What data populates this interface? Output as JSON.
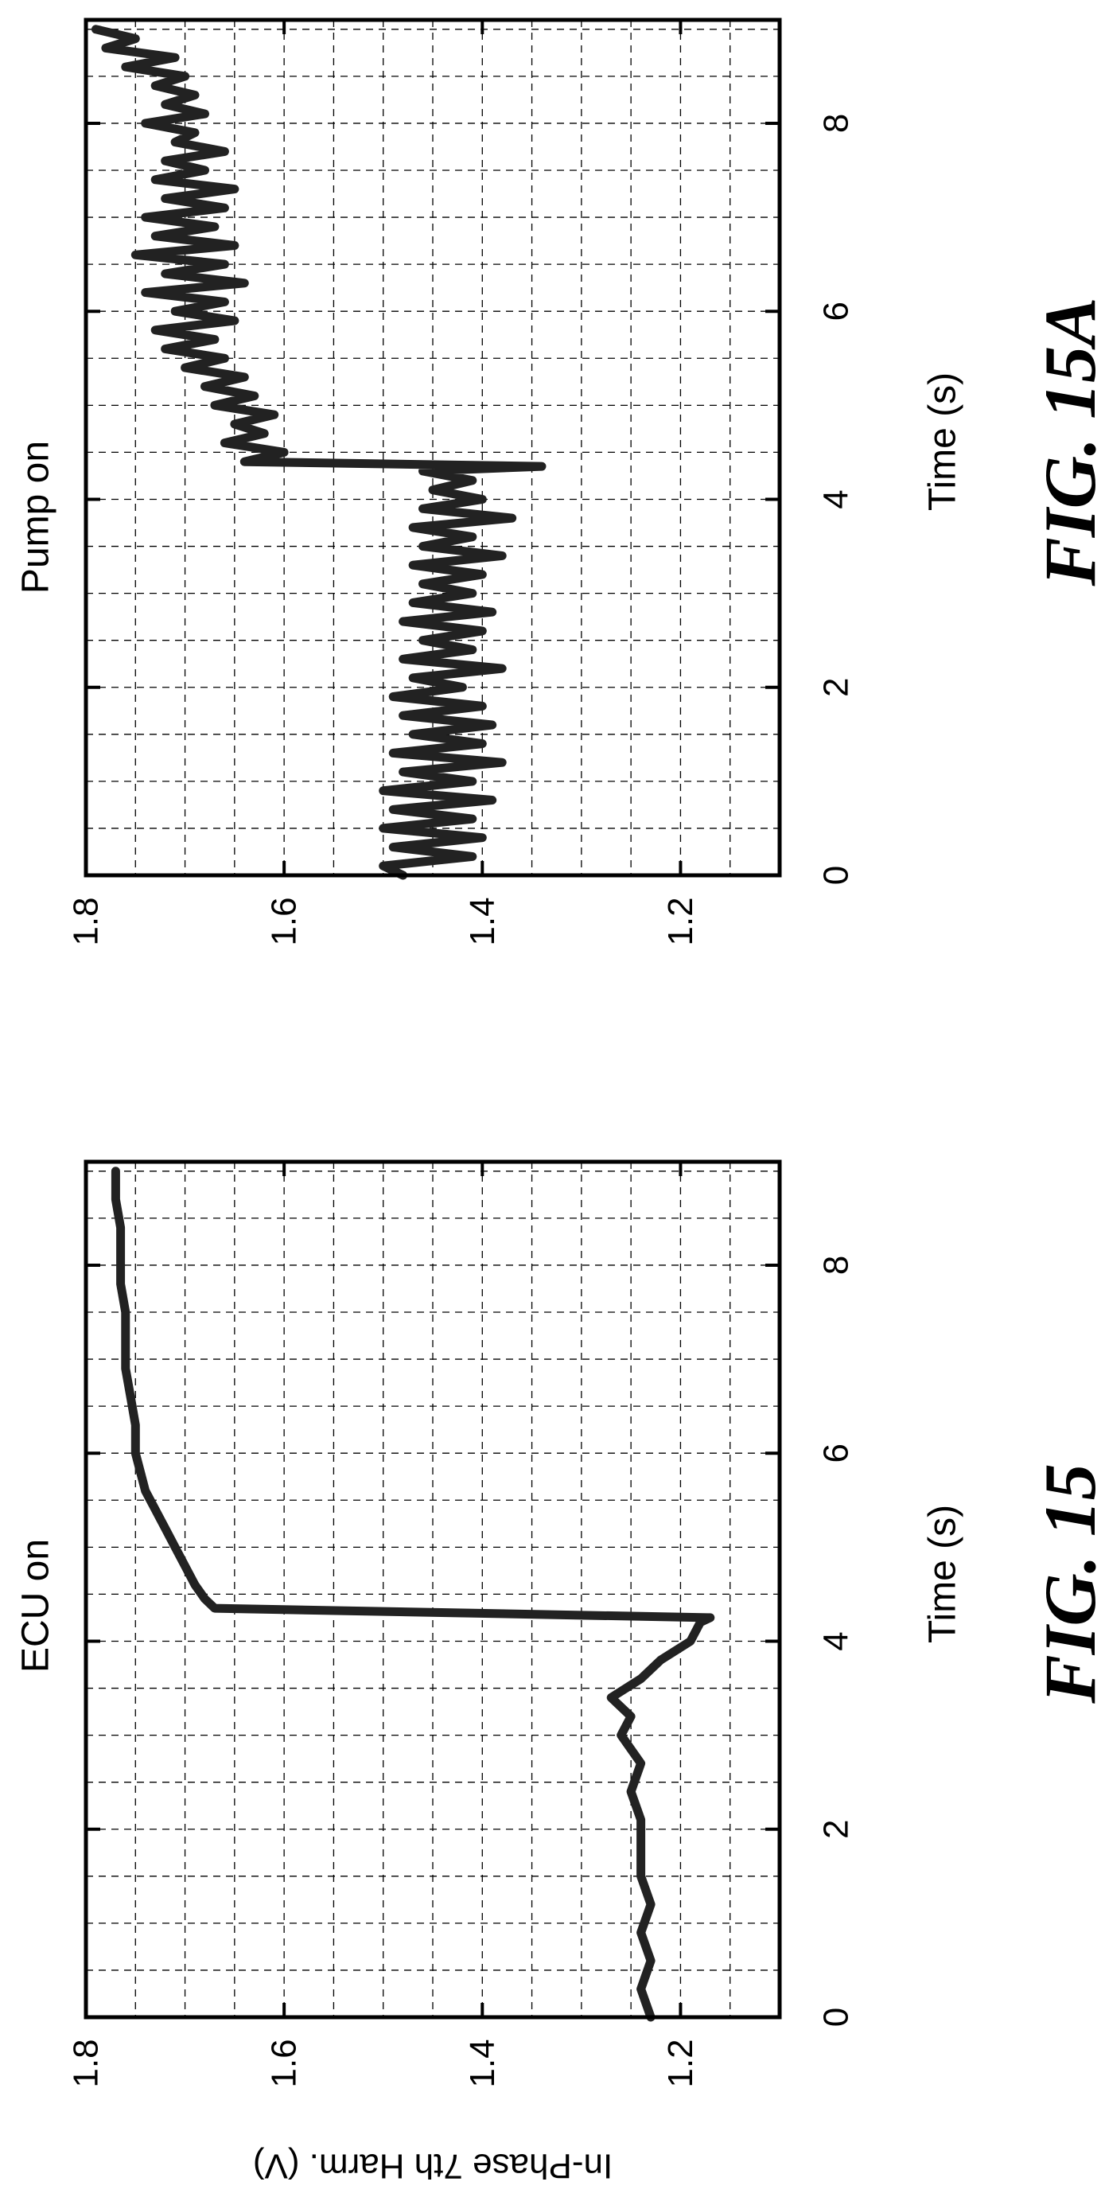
{
  "figures": [
    {
      "label": "FIG. 15",
      "chart_data": {
        "type": "line",
        "title": "ECU on",
        "xlabel": "Time (s)",
        "ylabel": "In-Phase 7th Harm. (V)",
        "xlim": [
          0,
          9.1
        ],
        "ylim": [
          1.1,
          1.8
        ],
        "xticks": [
          0,
          2,
          4,
          6,
          8
        ],
        "yticks": [
          1.8,
          1.6,
          1.4,
          1.2
        ],
        "xtick_labels": [
          "0",
          "2",
          "4",
          "6",
          "8"
        ],
        "ytick_labels": [
          "1.8",
          "1.6",
          "1.4",
          "1.2"
        ],
        "grid": true,
        "series": [
          {
            "x": [
              0,
              0.3,
              0.6,
              0.9,
              1.2,
              1.5,
              1.8,
              2.1,
              2.4,
              2.7,
              3.0,
              3.2,
              3.4,
              3.6,
              3.8,
              4.0,
              4.2,
              4.25,
              4.35,
              4.45,
              4.6,
              4.8,
              5.0,
              5.2,
              5.4,
              5.6,
              5.8,
              6.0,
              6.3,
              6.6,
              6.9,
              7.2,
              7.5,
              7.8,
              8.1,
              8.4,
              8.7,
              9.0
            ],
            "y": [
              1.23,
              1.24,
              1.23,
              1.24,
              1.23,
              1.24,
              1.24,
              1.24,
              1.25,
              1.24,
              1.26,
              1.25,
              1.27,
              1.24,
              1.22,
              1.19,
              1.18,
              1.17,
              1.67,
              1.68,
              1.69,
              1.7,
              1.71,
              1.72,
              1.73,
              1.74,
              1.745,
              1.75,
              1.75,
              1.755,
              1.76,
              1.76,
              1.76,
              1.765,
              1.765,
              1.765,
              1.77,
              1.77
            ]
          }
        ]
      }
    },
    {
      "label": "FIG. 15A",
      "chart_data": {
        "type": "line",
        "title": "Pump on",
        "xlabel": "Time (s)",
        "ylabel": "",
        "xlim": [
          0,
          9.1
        ],
        "ylim": [
          1.1,
          1.8
        ],
        "xticks": [
          0,
          2,
          4,
          6,
          8
        ],
        "yticks": [
          1.8,
          1.6,
          1.4,
          1.2
        ],
        "xtick_labels": [
          "0",
          "2",
          "4",
          "6",
          "8"
        ],
        "ytick_labels": [
          "1.8",
          "1.6",
          "1.4",
          "1.2"
        ],
        "grid": true,
        "series": [
          {
            "x": [
              0,
              0.1,
              0.2,
              0.3,
              0.4,
              0.5,
              0.6,
              0.7,
              0.8,
              0.9,
              1.0,
              1.1,
              1.2,
              1.3,
              1.4,
              1.5,
              1.6,
              1.7,
              1.8,
              1.9,
              2.0,
              2.1,
              2.2,
              2.3,
              2.4,
              2.5,
              2.6,
              2.7,
              2.8,
              2.9,
              3.0,
              3.1,
              3.2,
              3.3,
              3.4,
              3.5,
              3.6,
              3.7,
              3.8,
              3.9,
              4.0,
              4.1,
              4.2,
              4.3,
              4.35,
              4.4,
              4.5,
              4.6,
              4.7,
              4.8,
              4.9,
              5.0,
              5.1,
              5.2,
              5.3,
              5.4,
              5.5,
              5.6,
              5.7,
              5.8,
              5.9,
              6.0,
              6.1,
              6.2,
              6.3,
              6.4,
              6.5,
              6.6,
              6.7,
              6.8,
              6.9,
              7.0,
              7.1,
              7.2,
              7.3,
              7.4,
              7.5,
              7.6,
              7.7,
              7.8,
              7.9,
              8.0,
              8.1,
              8.2,
              8.3,
              8.4,
              8.5,
              8.6,
              8.7,
              8.8,
              8.9,
              9.0
            ],
            "y": [
              1.48,
              1.5,
              1.41,
              1.49,
              1.4,
              1.5,
              1.41,
              1.49,
              1.39,
              1.5,
              1.41,
              1.48,
              1.38,
              1.49,
              1.4,
              1.47,
              1.39,
              1.48,
              1.4,
              1.49,
              1.42,
              1.47,
              1.38,
              1.48,
              1.41,
              1.46,
              1.4,
              1.48,
              1.39,
              1.47,
              1.41,
              1.46,
              1.4,
              1.47,
              1.38,
              1.46,
              1.41,
              1.47,
              1.37,
              1.46,
              1.4,
              1.45,
              1.41,
              1.46,
              1.34,
              1.64,
              1.6,
              1.66,
              1.62,
              1.65,
              1.61,
              1.67,
              1.63,
              1.68,
              1.64,
              1.7,
              1.66,
              1.72,
              1.67,
              1.73,
              1.65,
              1.71,
              1.66,
              1.74,
              1.64,
              1.72,
              1.66,
              1.75,
              1.65,
              1.73,
              1.67,
              1.74,
              1.66,
              1.72,
              1.65,
              1.73,
              1.68,
              1.72,
              1.66,
              1.71,
              1.69,
              1.74,
              1.68,
              1.72,
              1.69,
              1.73,
              1.7,
              1.76,
              1.71,
              1.78,
              1.75,
              1.79
            ]
          }
        ]
      }
    }
  ],
  "colors": {
    "line": "#222222",
    "axes": "#000000",
    "grid": "#000000",
    "background": "#ffffff"
  }
}
